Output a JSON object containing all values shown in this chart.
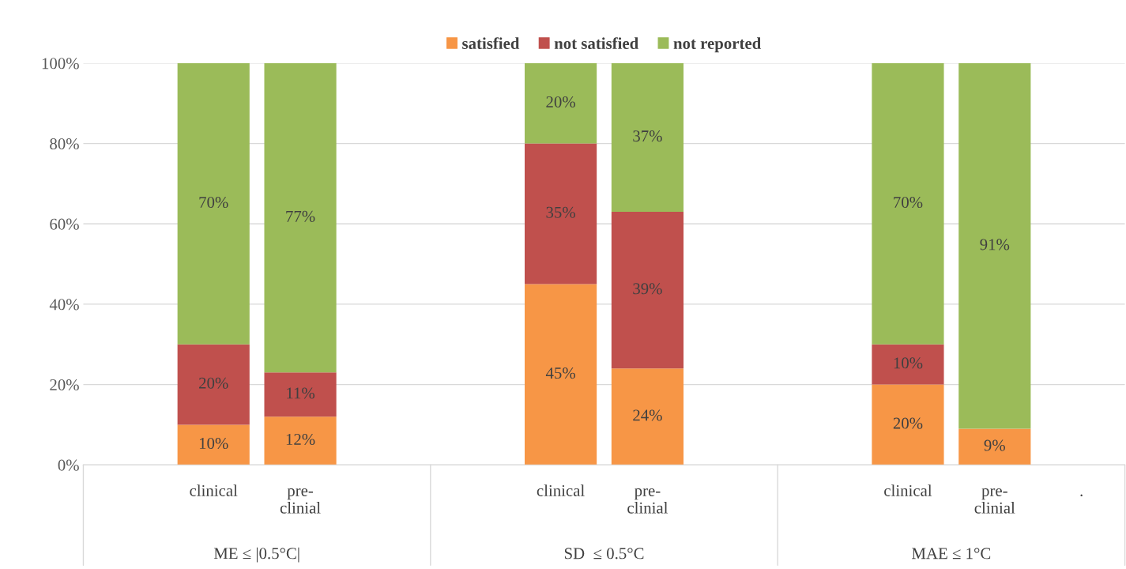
{
  "chart_data": {
    "type": "bar",
    "stacked": true,
    "categories": [
      null,
      "clinical",
      "pre-\nclinial",
      null,
      null,
      "clinical",
      "pre-\nclinial",
      null,
      null,
      "clinical",
      "pre-\nclinial",
      "."
    ],
    "series": [
      {
        "name": "satisfied",
        "color": "#f79646",
        "values": [
          null,
          10,
          12,
          null,
          null,
          45,
          24,
          null,
          null,
          20,
          9,
          null
        ],
        "value_labels": [
          null,
          "10%",
          "12%",
          null,
          null,
          "45%",
          "24%",
          null,
          null,
          "20%",
          "9%",
          null
        ]
      },
      {
        "name": "not satisfied",
        "color": "#c0504d",
        "values": [
          null,
          20,
          11,
          null,
          null,
          35,
          39,
          null,
          null,
          10,
          0,
          null
        ],
        "value_labels": [
          null,
          "20%",
          "11%",
          null,
          null,
          "35%",
          "39%",
          null,
          null,
          "10%",
          null,
          null
        ]
      },
      {
        "name": "not reported",
        "color": "#9bbb59",
        "values": [
          null,
          70,
          77,
          null,
          null,
          20,
          37,
          null,
          null,
          70,
          91,
          null
        ],
        "value_labels": [
          null,
          "70%",
          "77%",
          null,
          null,
          "20%",
          "37%",
          null,
          null,
          "70%",
          "91%",
          null
        ]
      }
    ],
    "annotations": [
      "ME ≤ |0.5°C|",
      "SD  ≤ 0.5°C",
      "MAE ≤ 1°C"
    ],
    "ylim": [
      0,
      100
    ],
    "yticks": [
      {
        "value": 0,
        "label": "0%"
      },
      {
        "value": 20,
        "label": "20%"
      },
      {
        "value": 40,
        "label": "40%"
      },
      {
        "value": 60,
        "label": "60%"
      },
      {
        "value": 80,
        "label": "80%"
      },
      {
        "value": 100,
        "label": "100%"
      }
    ],
    "grid": "y",
    "legend": "top"
  }
}
